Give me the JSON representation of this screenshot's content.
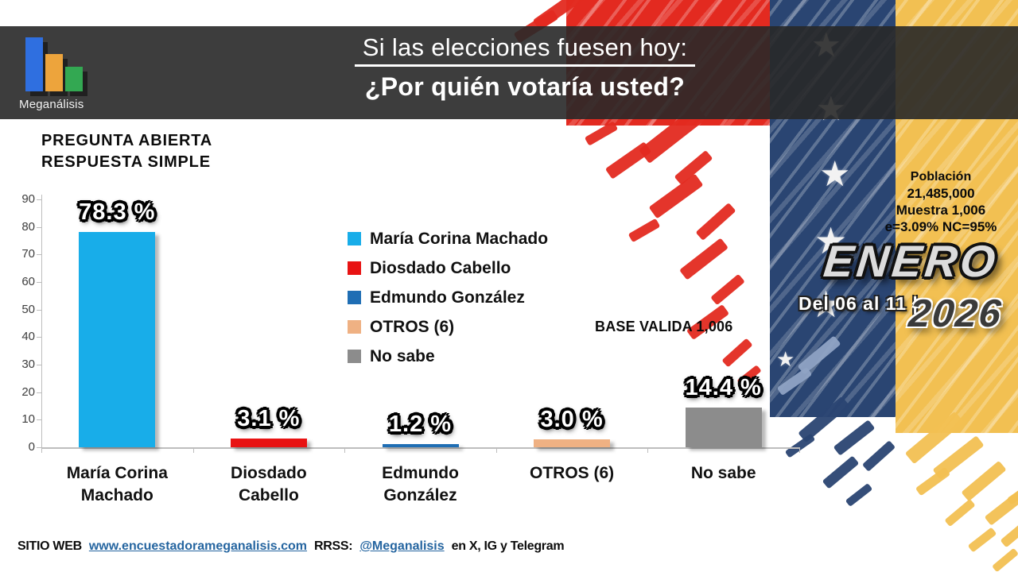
{
  "header": {
    "logo": {
      "brand": "Meganálisis",
      "icon": "bar-chart-logo",
      "bar_colors": [
        "#2f6fe0",
        "#eda43c",
        "#33a852"
      ]
    },
    "title_line1": "Si las elecciones fuesen hoy:",
    "title_line2": "¿Por quién votaría usted?"
  },
  "note": {
    "line1": "PREGUNTA  ABIERTA",
    "line2": "RESPUESTA SIMPLE"
  },
  "chart_data": {
    "type": "bar",
    "title": "Si las elecciones fuesen hoy: ¿Por quién votaría usted?",
    "categories": [
      "María Corina Machado",
      "Diosdado Cabello",
      "Edmundo González",
      "OTROS (6)",
      "No sabe"
    ],
    "x_tick_labels": [
      [
        "María Corina",
        "Machado"
      ],
      [
        "Diosdado",
        "Cabello"
      ],
      [
        "Edmundo",
        "González"
      ],
      [
        "OTROS (6)"
      ],
      [
        "No sabe"
      ]
    ],
    "values": [
      78.3,
      3.1,
      1.2,
      3.0,
      14.4
    ],
    "value_labels": [
      "78.3 %",
      "3.1 %",
      "1.2 %",
      "3.0 %",
      "14.4 %"
    ],
    "bar_colors": [
      "#18ADE9",
      "#E81313",
      "#1F6EB4",
      "#EFB183",
      "#8C8C8C"
    ],
    "xlabel": "",
    "ylabel": "",
    "ylim": [
      0,
      90
    ],
    "yticks": [
      0,
      10,
      20,
      30,
      40,
      50,
      60,
      70,
      80,
      90
    ],
    "grid": false,
    "legend_position": "center-right",
    "legend": [
      {
        "label": "María Corina Machado",
        "color": "#18ADE9"
      },
      {
        "label": "Diosdado Cabello",
        "color": "#E81313"
      },
      {
        "label": "Edmundo González",
        "color": "#1F6EB4"
      },
      {
        "label": "OTROS (6)",
        "color": "#EFB183"
      },
      {
        "label": "No sabe",
        "color": "#8C8C8C"
      }
    ],
    "annotations": [
      "BASE VALIDA 1,006"
    ]
  },
  "base_note": "BASE VALIDA 1,006",
  "stats": {
    "l1": "Población",
    "l2": "21,485,000",
    "l3": "Muestra 1,006",
    "l4": "e=3.09%  NC=95%"
  },
  "period": {
    "month": "ENERO",
    "range": "Del 06 al 11 |",
    "year": "2026"
  },
  "footer": {
    "site_label": "SITIO WEB",
    "site_url": "www.encuestadorameganalisis.com",
    "rrss_label": "RRSS:",
    "handle": "@Meganalisis",
    "networks": "en X, IG y Telegram"
  },
  "theme": {
    "banner": "#3d3d3d",
    "flag_red": "#e32a20",
    "flag_blue": "#2a4572",
    "flag_yellow": "#f2c052"
  }
}
